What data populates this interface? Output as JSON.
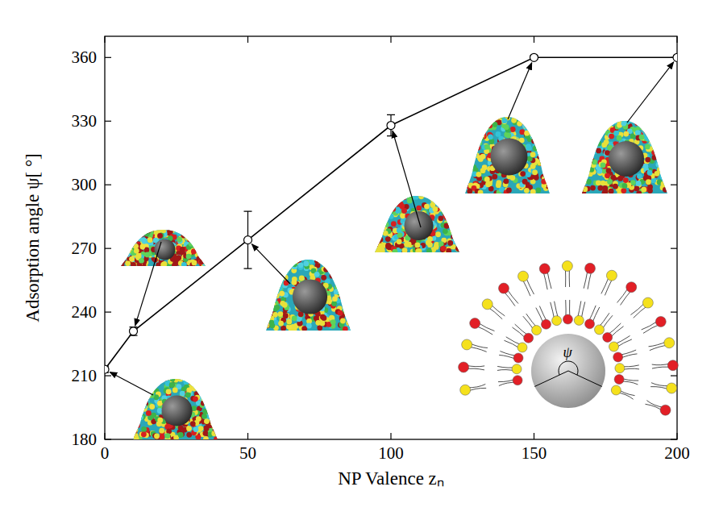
{
  "chart_data": {
    "type": "line",
    "xlabel": "NP Valence zₙ",
    "ylabel": "Adsorption angle ψ[ °]",
    "annotations": [
      "ψ"
    ],
    "x": [
      0,
      10,
      50,
      100,
      150,
      200
    ],
    "series": [
      {
        "color": "#000000",
        "marker": "circle",
        "line_style": "solid",
        "values": [
          213,
          231,
          274,
          328,
          360,
          360
        ],
        "errors": [
          1.5,
          2,
          13.5,
          5,
          0.8,
          0.8
        ]
      }
    ],
    "xlim": [
      0,
      200
    ],
    "xticks": [
      0,
      50,
      100,
      150,
      200
    ],
    "ylim": [
      180,
      370
    ],
    "yticks": [
      180,
      210,
      240,
      270,
      300,
      330,
      360
    ],
    "grid": false
  }
}
